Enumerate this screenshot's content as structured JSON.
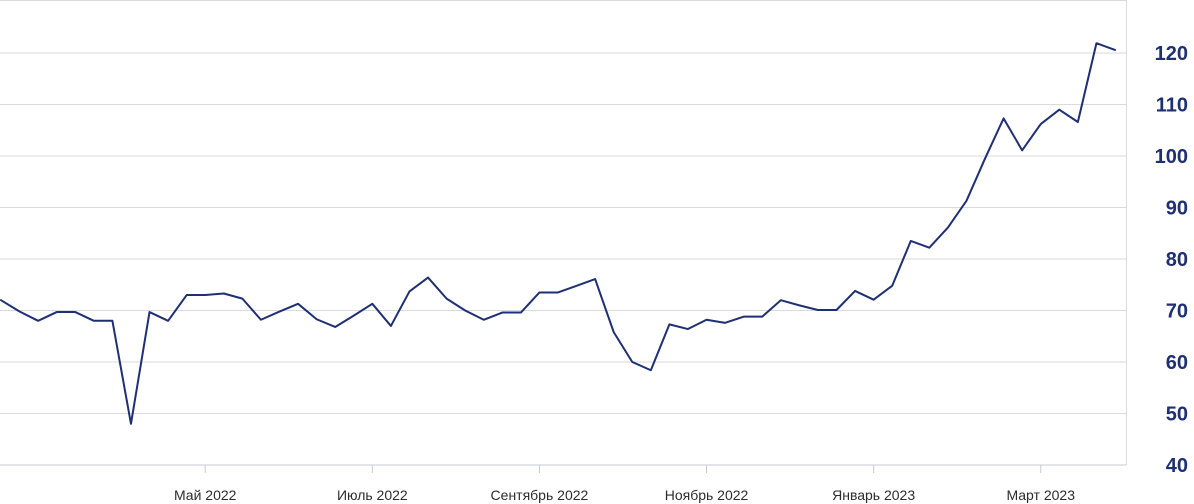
{
  "chart_data": {
    "type": "line",
    "title": "",
    "xlabel": "",
    "ylabel": "",
    "ylim": [
      40,
      120
    ],
    "yticks": [
      40,
      50,
      60,
      70,
      80,
      90,
      100,
      110,
      120
    ],
    "y_axis_side": "right",
    "grid": "horizontal",
    "legend": "none",
    "x_ticks": [
      {
        "label": "Май 2022",
        "index": 11
      },
      {
        "label": "Июль 2022",
        "index": 20
      },
      {
        "label": "Сентябрь 2022",
        "index": 29
      },
      {
        "label": "Ноябрь 2022",
        "index": 38
      },
      {
        "label": "Январь 2023",
        "index": 47
      },
      {
        "label": "Март 2023",
        "index": 56
      }
    ],
    "series": [
      {
        "values": [
          72,
          69.8,
          68,
          69.7,
          69.7,
          68,
          68,
          48,
          69.7,
          68,
          73,
          73,
          73.3,
          72.3,
          68.2,
          69.8,
          71.3,
          68.3,
          66.8,
          69,
          71.3,
          67,
          73.7,
          76.4,
          72.3,
          70,
          68.2,
          69.6,
          69.6,
          73.5,
          73.5,
          74.8,
          76.1,
          65.8,
          60,
          58.4,
          67.3,
          66.4,
          68.2,
          67.6,
          68.8,
          68.8,
          72,
          71,
          70.1,
          70.1,
          73.8,
          72.1,
          74.8,
          83.5,
          82.2,
          86.1,
          91.3,
          99.5,
          107.3,
          101.1,
          106.2,
          109,
          106.6,
          121.9,
          120.6
        ]
      }
    ],
    "colors": {
      "line": "#1f2f73",
      "grid": "#d9d9de",
      "y_labels": "#1f2f73"
    }
  }
}
